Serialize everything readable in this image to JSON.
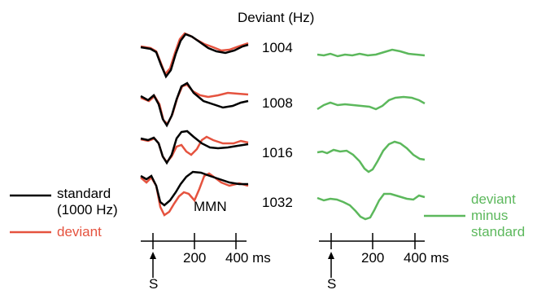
{
  "header": {
    "title": "Deviant (Hz)"
  },
  "traces": [
    {
      "freq_label": "1004"
    },
    {
      "freq_label": "1008"
    },
    {
      "freq_label": "1016"
    },
    {
      "freq_label": "1032"
    }
  ],
  "annotations": {
    "mmn": "MMN"
  },
  "legend": {
    "standard_line1": "standard",
    "standard_line2": "(1000 Hz)",
    "deviant": "deviant",
    "diff_line1": "deviant",
    "diff_line2": "minus",
    "diff_line3": "standard"
  },
  "axes": {
    "tick_200": "200",
    "tick_400": "400 ms",
    "stimulus": "S"
  },
  "colors": {
    "standard": "#000000",
    "deviant": "#e5533f",
    "difference": "#5cb85c"
  }
}
